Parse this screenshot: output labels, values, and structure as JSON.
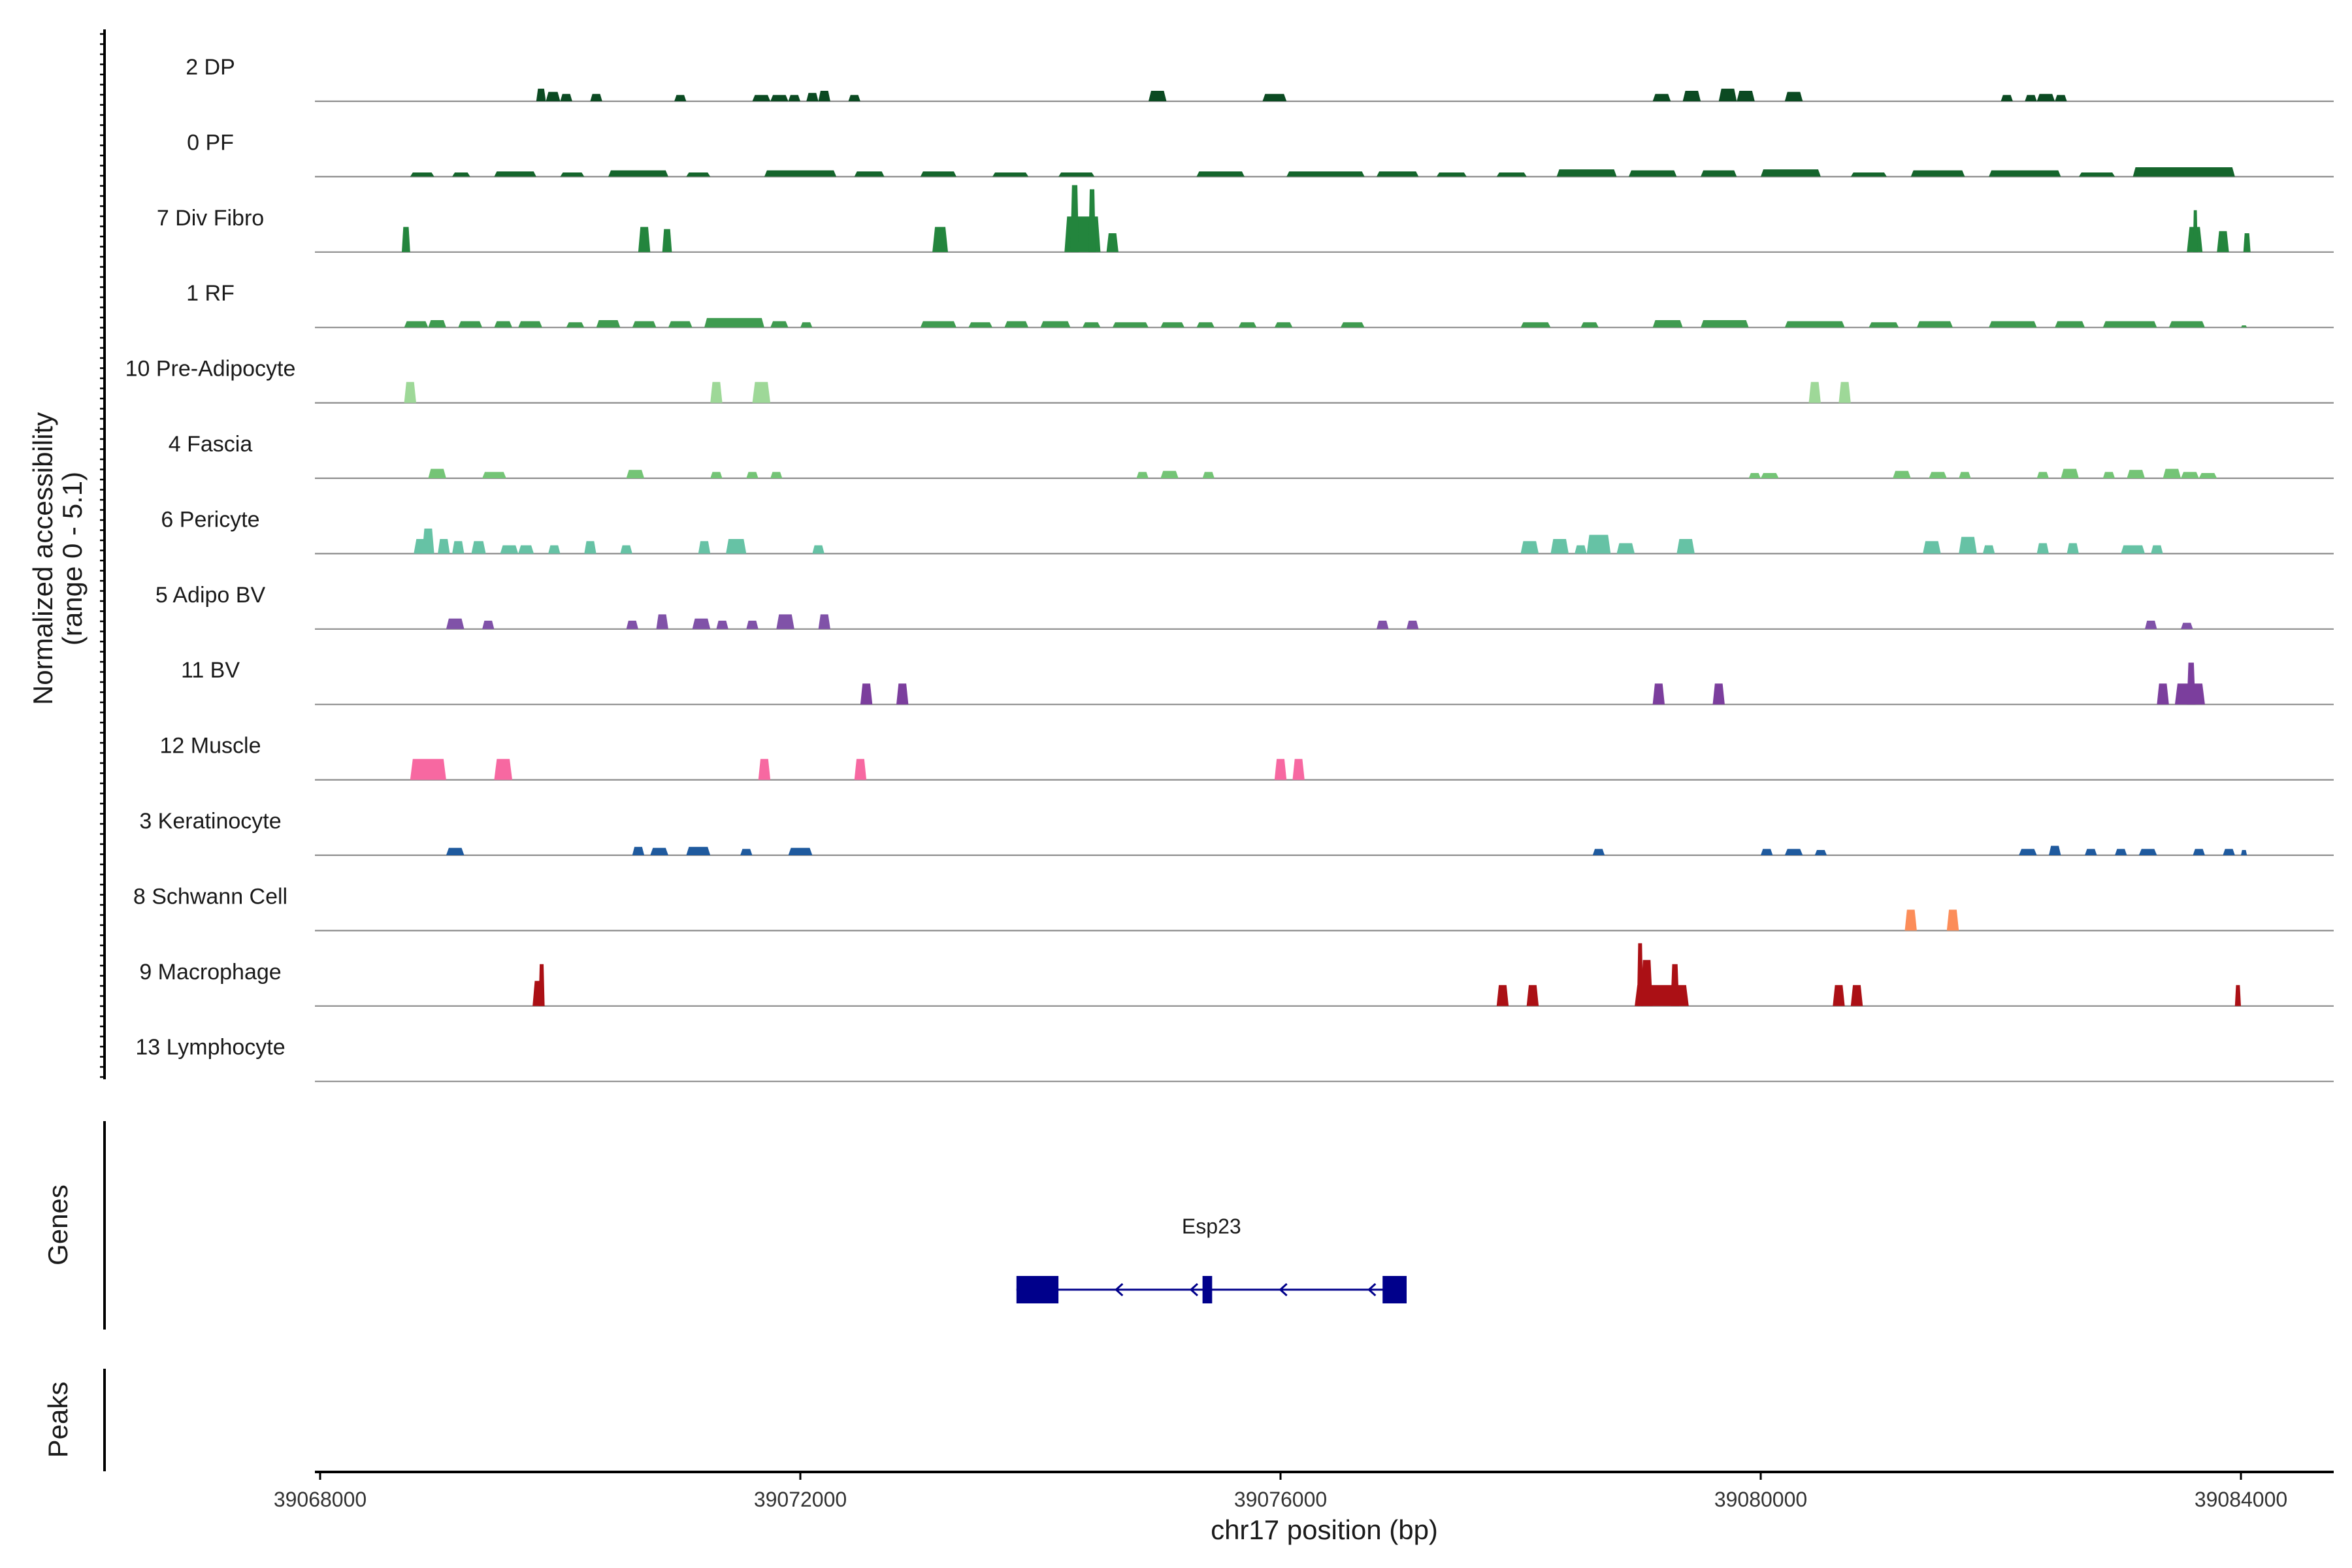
{
  "chart_data": {
    "type": "coverage",
    "xlabel": "chr17 position (bp)",
    "ylabel_line1": "Normalized accessibility",
    "ylabel_line2": "(range 0 - 5.1)",
    "y_range": [
      0,
      5.1
    ],
    "xlim": [
      39067950,
      39084800
    ],
    "xticks": [
      39068000,
      39072000,
      39076000,
      39080000,
      39084000
    ],
    "xtick_labels": [
      "39068000",
      "39072000",
      "39076000",
      "39080000",
      "39084000"
    ],
    "genes_label": "Genes",
    "peaks_label": "Peaks",
    "tracks": [
      {
        "name": "2 DP",
        "color": "#0b4a22",
        "peaks": [
          [
            39069800,
            39069880,
            0.6
          ],
          [
            39069880,
            39070000,
            0.45
          ],
          [
            39070000,
            39070100,
            0.35
          ],
          [
            39070250,
            39070350,
            0.35
          ],
          [
            39070950,
            39071050,
            0.3
          ],
          [
            39071600,
            39071750,
            0.3
          ],
          [
            39071750,
            39071900,
            0.3
          ],
          [
            39071900,
            39072000,
            0.3
          ],
          [
            39072050,
            39072150,
            0.4
          ],
          [
            39072150,
            39072250,
            0.5
          ],
          [
            39072400,
            39072500,
            0.3
          ],
          [
            39074900,
            39075050,
            0.5
          ],
          [
            39075850,
            39076050,
            0.35
          ],
          [
            39079100,
            39079250,
            0.35
          ],
          [
            39079350,
            39079500,
            0.5
          ],
          [
            39079650,
            39079800,
            0.6
          ],
          [
            39079800,
            39079950,
            0.5
          ],
          [
            39080200,
            39080350,
            0.45
          ],
          [
            39082000,
            39082100,
            0.3
          ],
          [
            39082200,
            39082300,
            0.3
          ],
          [
            39082300,
            39082450,
            0.35
          ],
          [
            39082450,
            39082550,
            0.3
          ]
        ]
      },
      {
        "name": "0 PF",
        "color": "#15652c",
        "peaks": [
          [
            39068750,
            39068950,
            0.2
          ],
          [
            39069100,
            39069250,
            0.2
          ],
          [
            39069450,
            39069800,
            0.25
          ],
          [
            39070000,
            39070200,
            0.2
          ],
          [
            39070400,
            39070900,
            0.3
          ],
          [
            39071050,
            39071250,
            0.2
          ],
          [
            39071700,
            39072300,
            0.3
          ],
          [
            39072450,
            39072700,
            0.25
          ],
          [
            39073000,
            39073300,
            0.25
          ],
          [
            39073600,
            39073900,
            0.2
          ],
          [
            39074150,
            39074450,
            0.2
          ],
          [
            39075300,
            39075700,
            0.25
          ],
          [
            39076050,
            39076700,
            0.25
          ],
          [
            39076800,
            39077150,
            0.25
          ],
          [
            39077300,
            39077550,
            0.2
          ],
          [
            39077800,
            39078050,
            0.2
          ],
          [
            39078300,
            39078800,
            0.35
          ],
          [
            39078900,
            39079300,
            0.3
          ],
          [
            39079500,
            39079800,
            0.3
          ],
          [
            39080000,
            39080500,
            0.35
          ],
          [
            39080750,
            39081050,
            0.2
          ],
          [
            39081250,
            39081700,
            0.3
          ],
          [
            39081900,
            39082500,
            0.3
          ],
          [
            39082650,
            39082950,
            0.2
          ],
          [
            39083100,
            39083950,
            0.45
          ]
        ]
      },
      {
        "name": "7 Div Fibro",
        "color": "#23853d",
        "peaks": [
          [
            39068680,
            39068750,
            1.2
          ],
          [
            39070650,
            39070750,
            1.2
          ],
          [
            39070850,
            39070930,
            1.1
          ],
          [
            39073100,
            39073230,
            1.2
          ],
          [
            39074200,
            39074500,
            1.7
          ],
          [
            39074250,
            39074320,
            3.2
          ],
          [
            39074400,
            39074460,
            3.0
          ],
          [
            39074550,
            39074650,
            0.9
          ],
          [
            39083550,
            39083680,
            1.2
          ],
          [
            39083600,
            39083640,
            2.0
          ],
          [
            39083800,
            39083900,
            1.0
          ],
          [
            39084020,
            39084080,
            0.9
          ]
        ]
      },
      {
        "name": "1 RF",
        "color": "#3f9b50",
        "peaks": [
          [
            39068700,
            39068900,
            0.3
          ],
          [
            39068900,
            39069050,
            0.35
          ],
          [
            39069150,
            39069350,
            0.3
          ],
          [
            39069450,
            39069600,
            0.3
          ],
          [
            39069650,
            39069850,
            0.3
          ],
          [
            39070050,
            39070200,
            0.25
          ],
          [
            39070300,
            39070500,
            0.35
          ],
          [
            39070600,
            39070800,
            0.3
          ],
          [
            39070900,
            39071100,
            0.3
          ],
          [
            39071200,
            39071700,
            0.45
          ],
          [
            39071750,
            39071900,
            0.3
          ],
          [
            39072000,
            39072100,
            0.25
          ],
          [
            39073000,
            39073300,
            0.3
          ],
          [
            39073400,
            39073600,
            0.25
          ],
          [
            39073700,
            39073900,
            0.3
          ],
          [
            39074000,
            39074250,
            0.3
          ],
          [
            39074350,
            39074500,
            0.25
          ],
          [
            39074600,
            39074900,
            0.25
          ],
          [
            39075000,
            39075200,
            0.25
          ],
          [
            39075300,
            39075450,
            0.25
          ],
          [
            39075650,
            39075800,
            0.25
          ],
          [
            39075950,
            39076100,
            0.25
          ],
          [
            39076500,
            39076700,
            0.25
          ],
          [
            39078000,
            39078250,
            0.25
          ],
          [
            39078500,
            39078650,
            0.25
          ],
          [
            39079100,
            39079350,
            0.35
          ],
          [
            39079500,
            39079900,
            0.35
          ],
          [
            39080200,
            39080700,
            0.3
          ],
          [
            39080900,
            39081150,
            0.25
          ],
          [
            39081300,
            39081600,
            0.3
          ],
          [
            39081900,
            39082300,
            0.3
          ],
          [
            39082450,
            39082700,
            0.3
          ],
          [
            39082850,
            39083300,
            0.3
          ],
          [
            39083400,
            39083700,
            0.3
          ],
          [
            39084000,
            39084050,
            0.1
          ]
        ]
      },
      {
        "name": "10 Pre-Adipocyte",
        "color": "#9ed898",
        "peaks": [
          [
            39068700,
            39068800,
            1.0
          ],
          [
            39071250,
            39071350,
            1.0
          ],
          [
            39071600,
            39071750,
            1.0
          ],
          [
            39080400,
            39080500,
            1.0
          ],
          [
            39080650,
            39080750,
            1.0
          ]
        ]
      },
      {
        "name": "4 Fascia",
        "color": "#74c476",
        "peaks": [
          [
            39068900,
            39069050,
            0.45
          ],
          [
            39069350,
            39069550,
            0.3
          ],
          [
            39070550,
            39070700,
            0.4
          ],
          [
            39071250,
            39071350,
            0.3
          ],
          [
            39071550,
            39071650,
            0.3
          ],
          [
            39071750,
            39071850,
            0.3
          ],
          [
            39074800,
            39074900,
            0.3
          ],
          [
            39075000,
            39075150,
            0.35
          ],
          [
            39075350,
            39075450,
            0.3
          ],
          [
            39079900,
            39080000,
            0.25
          ],
          [
            39080000,
            39080150,
            0.25
          ],
          [
            39081100,
            39081250,
            0.35
          ],
          [
            39081400,
            39081550,
            0.3
          ],
          [
            39081650,
            39081750,
            0.3
          ],
          [
            39082300,
            39082400,
            0.3
          ],
          [
            39082500,
            39082650,
            0.45
          ],
          [
            39082850,
            39082950,
            0.3
          ],
          [
            39083050,
            39083200,
            0.4
          ],
          [
            39083350,
            39083500,
            0.45
          ],
          [
            39083500,
            39083650,
            0.3
          ],
          [
            39083650,
            39083800,
            0.25
          ]
        ]
      },
      {
        "name": "6 Pericyte",
        "color": "#66c2a5",
        "peaks": [
          [
            39068780,
            39068900,
            0.7
          ],
          [
            39068850,
            39068950,
            1.2
          ],
          [
            39068980,
            39069080,
            0.7
          ],
          [
            39069100,
            39069200,
            0.6
          ],
          [
            39069260,
            39069380,
            0.6
          ],
          [
            39069500,
            39069650,
            0.4
          ],
          [
            39069650,
            39069780,
            0.4
          ],
          [
            39069900,
            39070000,
            0.4
          ],
          [
            39070200,
            39070300,
            0.6
          ],
          [
            39070500,
            39070600,
            0.4
          ],
          [
            39071150,
            39071250,
            0.6
          ],
          [
            39071380,
            39071550,
            0.7
          ],
          [
            39072100,
            39072200,
            0.4
          ],
          [
            39078000,
            39078150,
            0.6
          ],
          [
            39078250,
            39078400,
            0.7
          ],
          [
            39078450,
            39078550,
            0.4
          ],
          [
            39078550,
            39078750,
            0.9
          ],
          [
            39078800,
            39078950,
            0.5
          ],
          [
            39079300,
            39079450,
            0.7
          ],
          [
            39081350,
            39081500,
            0.6
          ],
          [
            39081650,
            39081800,
            0.8
          ],
          [
            39081850,
            39081950,
            0.4
          ],
          [
            39082300,
            39082400,
            0.5
          ],
          [
            39082550,
            39082650,
            0.5
          ],
          [
            39083000,
            39083200,
            0.4
          ],
          [
            39083250,
            39083350,
            0.4
          ]
        ]
      },
      {
        "name": "5 Adipo BV",
        "color": "#8052a8",
        "peaks": [
          [
            39069050,
            39069200,
            0.5
          ],
          [
            39069350,
            39069450,
            0.4
          ],
          [
            39070550,
            39070650,
            0.4
          ],
          [
            39070800,
            39070900,
            0.7
          ],
          [
            39071100,
            39071250,
            0.5
          ],
          [
            39071300,
            39071400,
            0.4
          ],
          [
            39071550,
            39071650,
            0.4
          ],
          [
            39071800,
            39071950,
            0.7
          ],
          [
            39072150,
            39072250,
            0.7
          ],
          [
            39076800,
            39076900,
            0.4
          ],
          [
            39077050,
            39077150,
            0.4
          ],
          [
            39083200,
            39083300,
            0.4
          ],
          [
            39083500,
            39083600,
            0.3
          ]
        ]
      },
      {
        "name": "11 BV",
        "color": "#7b3e9d",
        "peaks": [
          [
            39072500,
            39072600,
            1.0
          ],
          [
            39072800,
            39072900,
            1.0
          ],
          [
            39079100,
            39079200,
            1.0
          ],
          [
            39079600,
            39079700,
            1.0
          ],
          [
            39083300,
            39083400,
            1.0
          ],
          [
            39083450,
            39083700,
            1.0
          ],
          [
            39083550,
            39083620,
            2.0
          ]
        ]
      },
      {
        "name": "12 Muscle",
        "color": "#f768a1",
        "peaks": [
          [
            39068750,
            39069050,
            1.0
          ],
          [
            39069450,
            39069600,
            1.0
          ],
          [
            39071650,
            39071750,
            1.0
          ],
          [
            39072450,
            39072550,
            1.0
          ],
          [
            39075950,
            39076050,
            1.0
          ],
          [
            39076100,
            39076200,
            1.0
          ]
        ]
      },
      {
        "name": "3 Keratinocyte",
        "color": "#1f5a9e",
        "peaks": [
          [
            39069050,
            39069200,
            0.35
          ],
          [
            39070600,
            39070700,
            0.4
          ],
          [
            39070750,
            39070900,
            0.35
          ],
          [
            39071050,
            39071250,
            0.4
          ],
          [
            39071500,
            39071600,
            0.3
          ],
          [
            39071900,
            39072100,
            0.35
          ],
          [
            39078600,
            39078700,
            0.3
          ],
          [
            39080000,
            39080100,
            0.3
          ],
          [
            39080200,
            39080350,
            0.3
          ],
          [
            39080450,
            39080550,
            0.25
          ],
          [
            39082150,
            39082300,
            0.3
          ],
          [
            39082400,
            39082500,
            0.45
          ],
          [
            39082700,
            39082800,
            0.3
          ],
          [
            39082950,
            39083050,
            0.3
          ],
          [
            39083150,
            39083300,
            0.3
          ],
          [
            39083600,
            39083700,
            0.3
          ],
          [
            39083850,
            39083950,
            0.3
          ],
          [
            39084000,
            39084050,
            0.25
          ]
        ]
      },
      {
        "name": "8 Schwann Cell",
        "color": "#fc8d59",
        "peaks": [
          [
            39081200,
            39081300,
            1.0
          ],
          [
            39081550,
            39081650,
            1.0
          ]
        ]
      },
      {
        "name": "9 Macrophage",
        "color": "#ab1015",
        "peaks": [
          [
            39069770,
            39069870,
            1.2
          ],
          [
            39069820,
            39069870,
            2.0
          ],
          [
            39077800,
            39077900,
            1.0
          ],
          [
            39078050,
            39078150,
            1.0
          ],
          [
            39078950,
            39079400,
            1.0
          ],
          [
            39078970,
            39079020,
            3.0
          ],
          [
            39079000,
            39079100,
            2.2
          ],
          [
            39079250,
            39079320,
            2.0
          ],
          [
            39080600,
            39080700,
            1.0
          ],
          [
            39080750,
            39080850,
            1.0
          ],
          [
            39083950,
            39084000,
            1.0
          ]
        ]
      },
      {
        "name": "13 Lymphocyte",
        "color": "#6b4a2b",
        "peaks": []
      }
    ],
    "gene": {
      "name": "Esp23",
      "color": "#00008b",
      "strand": "-",
      "start": 39073800,
      "end": 39077050,
      "exons": [
        [
          39073800,
          39074150
        ],
        [
          39075350,
          39075430
        ],
        [
          39076850,
          39077050
        ]
      ]
    }
  }
}
